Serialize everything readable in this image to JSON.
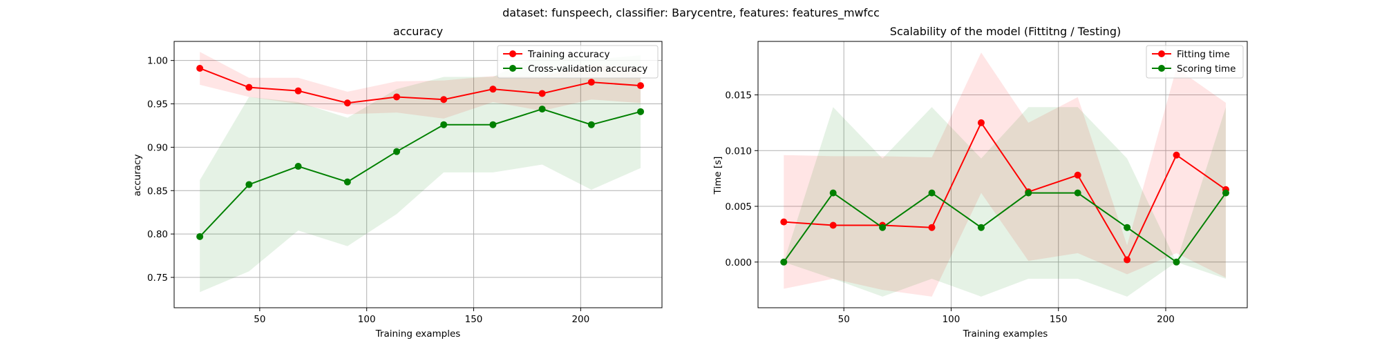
{
  "suptitle": "dataset: funspeech, classifier: Barycentre, features: features_mwfcc",
  "colors": {
    "red": "#ff0000",
    "green": "#008000"
  },
  "chart_data": [
    {
      "type": "line",
      "title": "accuracy",
      "xlabel": "Training examples",
      "ylabel": "accuracy",
      "xlim": [
        10,
        238
      ],
      "ylim": [
        0.715,
        1.022
      ],
      "xticks": [
        50,
        100,
        150,
        200
      ],
      "yticks": [
        0.75,
        0.8,
        0.85,
        0.9,
        0.95,
        1.0
      ],
      "ytick_labels": [
        "0.75",
        "0.80",
        "0.85",
        "0.90",
        "0.95",
        "1.00"
      ],
      "grid": true,
      "legend_position": "upper right",
      "x": [
        22,
        45,
        68,
        91,
        114,
        136,
        159,
        182,
        205,
        228
      ],
      "series": [
        {
          "name": "Training accuracy",
          "color": "#ff0000",
          "values": [
            0.991,
            0.969,
            0.965,
            0.951,
            0.958,
            0.955,
            0.967,
            0.962,
            0.975,
            0.971
          ],
          "band_lower": [
            0.972,
            0.958,
            0.95,
            0.938,
            0.94,
            0.933,
            0.952,
            0.942,
            0.955,
            0.951
          ],
          "band_upper": [
            1.01,
            0.98,
            0.98,
            0.964,
            0.976,
            0.977,
            0.982,
            0.982,
            0.995,
            0.991
          ]
        },
        {
          "name": "Cross-validation accuracy",
          "color": "#008000",
          "values": [
            0.797,
            0.857,
            0.878,
            0.86,
            0.895,
            0.926,
            0.926,
            0.944,
            0.926,
            0.941
          ],
          "band_lower": [
            0.733,
            0.757,
            0.804,
            0.786,
            0.823,
            0.871,
            0.871,
            0.88,
            0.851,
            0.876
          ],
          "band_upper": [
            0.862,
            0.958,
            0.952,
            0.934,
            0.967,
            0.981,
            0.981,
            1.008,
            1.001,
            1.006
          ]
        }
      ]
    },
    {
      "type": "line",
      "title": "Scalability of the model (Fittitng / Testing)",
      "xlabel": "Training examples",
      "ylabel": "Time [s]",
      "xlim": [
        10,
        238
      ],
      "ylim": [
        -0.0041,
        0.0198
      ],
      "xticks": [
        50,
        100,
        150,
        200
      ],
      "yticks": [
        0.0,
        0.005,
        0.01,
        0.015
      ],
      "ytick_labels": [
        "0.000",
        "0.005",
        "0.010",
        "0.015"
      ],
      "grid": true,
      "legend_position": "upper right",
      "x": [
        22,
        45,
        68,
        91,
        114,
        136,
        159,
        182,
        205,
        228
      ],
      "series": [
        {
          "name": "Fitting time",
          "color": "#ff0000",
          "values": [
            0.0036,
            0.0033,
            0.0033,
            0.0031,
            0.0125,
            0.0063,
            0.0078,
            0.0002,
            0.0096,
            0.0065
          ],
          "band_lower": [
            -0.0024,
            -0.0015,
            -0.0025,
            -0.0031,
            0.0062,
            0.0001,
            0.0008,
            -0.0011,
            0.0008,
            -0.0014
          ],
          "band_upper": [
            0.0096,
            0.0095,
            0.0095,
            0.0094,
            0.0188,
            0.0125,
            0.0148,
            0.0015,
            0.0174,
            0.0143
          ]
        },
        {
          "name": "Scoring time",
          "color": "#008000",
          "values": [
            0.0,
            0.0062,
            0.0031,
            0.0062,
            0.0031,
            0.0062,
            0.0062,
            0.0031,
            0.0,
            0.0062
          ],
          "band_lower": [
            0.0,
            -0.0015,
            -0.0031,
            -0.0015,
            -0.0031,
            -0.0015,
            -0.0015,
            -0.0031,
            0.0,
            -0.0015
          ],
          "band_upper": [
            0.0,
            0.0139,
            0.0093,
            0.0139,
            0.0093,
            0.0139,
            0.0139,
            0.0093,
            0.0,
            0.0139
          ]
        }
      ]
    }
  ]
}
